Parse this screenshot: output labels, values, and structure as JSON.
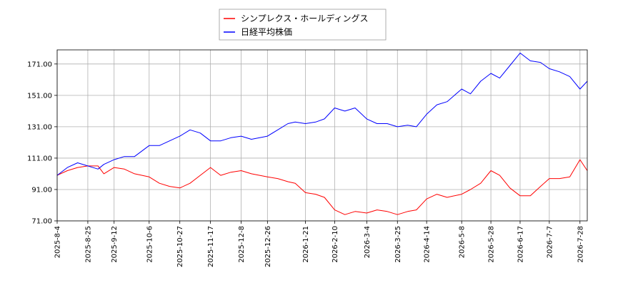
{
  "chart_data": {
    "type": "line",
    "title": "",
    "xlabel": "",
    "ylabel": "",
    "ylim": [
      71.0,
      180.0
    ],
    "y_ticks": [
      "71.00",
      "91.00",
      "111.00",
      "131.00",
      "151.00",
      "171.00"
    ],
    "y_tick_values": [
      71,
      91,
      111,
      131,
      151,
      171
    ],
    "x_ticks": [
      "2025-8-4",
      "2025-8-25",
      "2025-9-12",
      "2025-10-6",
      "2025-10-27",
      "2025-11-17",
      "2025-12-8",
      "2025-12-26",
      "2026-1-21",
      "2026-2-10",
      "2026-3-4",
      "2026-3-25",
      "2026-4-14",
      "2026-5-8",
      "2026-5-28",
      "2026-6-17",
      "2026-7-7",
      "2026-7-28"
    ],
    "grid": true,
    "legend_position": "top-center",
    "colors": {
      "series1": "#ff0000",
      "series2": "#0000ff"
    },
    "series": [
      {
        "name": "シンプレクス・ホールディングス",
        "color": "#ff0000",
        "points": [
          [
            "2025-8-4",
            100
          ],
          [
            "2025-8-11",
            103
          ],
          [
            "2025-8-18",
            105
          ],
          [
            "2025-8-25",
            106
          ],
          [
            "2025-9-1",
            106
          ],
          [
            "2025-9-5",
            101
          ],
          [
            "2025-9-12",
            105
          ],
          [
            "2025-9-19",
            104
          ],
          [
            "2025-9-26",
            101
          ],
          [
            "2025-10-6",
            99
          ],
          [
            "2025-10-13",
            95
          ],
          [
            "2025-10-20",
            93
          ],
          [
            "2025-10-27",
            92
          ],
          [
            "2025-11-3",
            95
          ],
          [
            "2025-11-10",
            100
          ],
          [
            "2025-11-17",
            105
          ],
          [
            "2025-11-24",
            100
          ],
          [
            "2025-12-1",
            102
          ],
          [
            "2025-12-8",
            103
          ],
          [
            "2025-12-15",
            101
          ],
          [
            "2025-12-26",
            99
          ],
          [
            "2026-1-2",
            98
          ],
          [
            "2026-1-9",
            96
          ],
          [
            "2026-1-14",
            95
          ],
          [
            "2026-1-21",
            89
          ],
          [
            "2026-1-28",
            88
          ],
          [
            "2026-2-3",
            86
          ],
          [
            "2026-2-10",
            78
          ],
          [
            "2026-2-17",
            75
          ],
          [
            "2026-2-24",
            77
          ],
          [
            "2026-3-4",
            76
          ],
          [
            "2026-3-11",
            78
          ],
          [
            "2026-3-18",
            77
          ],
          [
            "2026-3-25",
            75
          ],
          [
            "2026-4-1",
            77
          ],
          [
            "2026-4-7",
            78
          ],
          [
            "2026-4-14",
            85
          ],
          [
            "2026-4-21",
            88
          ],
          [
            "2026-4-28",
            86
          ],
          [
            "2026-5-8",
            88
          ],
          [
            "2026-5-14",
            91
          ],
          [
            "2026-5-21",
            95
          ],
          [
            "2026-5-28",
            103
          ],
          [
            "2026-6-3",
            100
          ],
          [
            "2026-6-10",
            92
          ],
          [
            "2026-6-17",
            87
          ],
          [
            "2026-6-24",
            87
          ],
          [
            "2026-7-1",
            93
          ],
          [
            "2026-7-7",
            98
          ],
          [
            "2026-7-14",
            98
          ],
          [
            "2026-7-21",
            99
          ],
          [
            "2026-7-28",
            110
          ],
          [
            "2026-8-2",
            103
          ]
        ]
      },
      {
        "name": "日経平均株価",
        "color": "#0000ff",
        "points": [
          [
            "2025-8-4",
            100
          ],
          [
            "2025-8-11",
            105
          ],
          [
            "2025-8-18",
            108
          ],
          [
            "2025-8-25",
            106
          ],
          [
            "2025-9-1",
            104
          ],
          [
            "2025-9-5",
            107
          ],
          [
            "2025-9-12",
            110
          ],
          [
            "2025-9-19",
            112
          ],
          [
            "2025-9-26",
            112
          ],
          [
            "2025-10-6",
            119
          ],
          [
            "2025-10-13",
            119
          ],
          [
            "2025-10-20",
            122
          ],
          [
            "2025-10-27",
            125
          ],
          [
            "2025-11-3",
            129
          ],
          [
            "2025-11-10",
            127
          ],
          [
            "2025-11-17",
            122
          ],
          [
            "2025-11-24",
            122
          ],
          [
            "2025-12-1",
            124
          ],
          [
            "2025-12-8",
            125
          ],
          [
            "2025-12-15",
            123
          ],
          [
            "2025-12-26",
            125
          ],
          [
            "2026-1-2",
            129
          ],
          [
            "2026-1-9",
            133
          ],
          [
            "2026-1-14",
            134
          ],
          [
            "2026-1-21",
            133
          ],
          [
            "2026-1-28",
            134
          ],
          [
            "2026-2-3",
            136
          ],
          [
            "2026-2-10",
            143
          ],
          [
            "2026-2-17",
            141
          ],
          [
            "2026-2-24",
            143
          ],
          [
            "2026-3-4",
            136
          ],
          [
            "2026-3-11",
            133
          ],
          [
            "2026-3-18",
            133
          ],
          [
            "2026-3-25",
            131
          ],
          [
            "2026-4-1",
            132
          ],
          [
            "2026-4-7",
            131
          ],
          [
            "2026-4-14",
            139
          ],
          [
            "2026-4-21",
            145
          ],
          [
            "2026-4-28",
            147
          ],
          [
            "2026-5-8",
            155
          ],
          [
            "2026-5-14",
            152
          ],
          [
            "2026-5-21",
            160
          ],
          [
            "2026-5-28",
            165
          ],
          [
            "2026-6-3",
            162
          ],
          [
            "2026-6-10",
            170
          ],
          [
            "2026-6-17",
            178
          ],
          [
            "2026-6-24",
            173
          ],
          [
            "2026-7-1",
            172
          ],
          [
            "2026-7-7",
            168
          ],
          [
            "2026-7-14",
            166
          ],
          [
            "2026-7-21",
            163
          ],
          [
            "2026-7-28",
            155
          ],
          [
            "2026-8-2",
            160
          ]
        ]
      }
    ]
  }
}
